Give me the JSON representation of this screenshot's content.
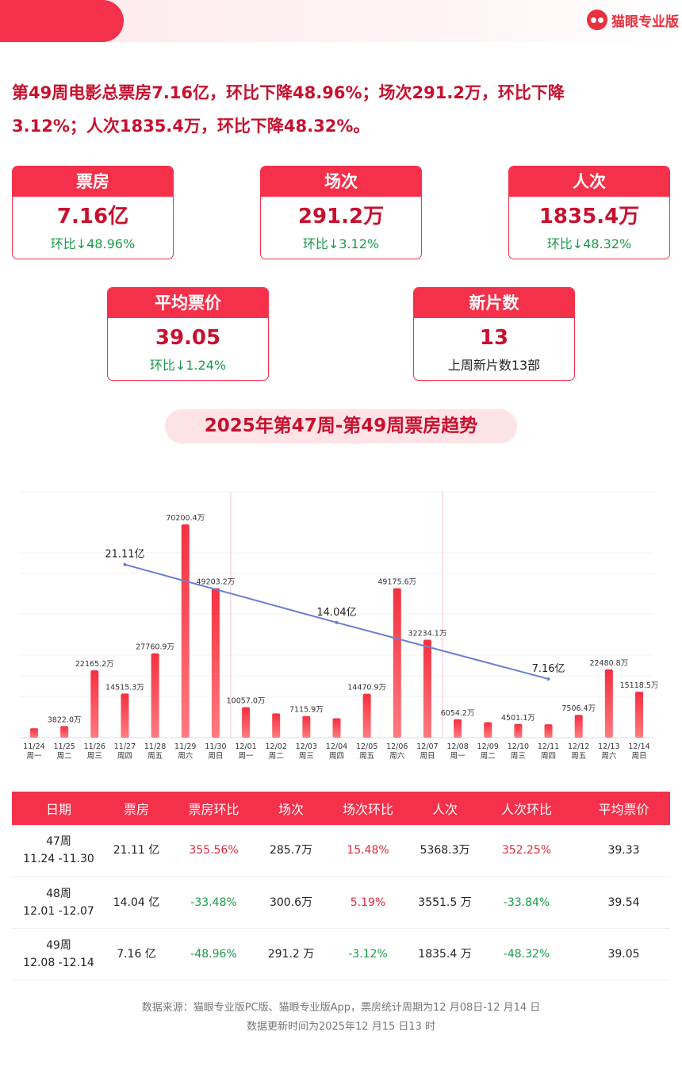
{
  "brand": {
    "name": "猫眼专业版",
    "logo_icon": "cat-icon",
    "accent": "#f5304a"
  },
  "headline": "第49周电影总票房7.16亿，环比下降48.96%；场次291.2万，环比下降3.12%；人次1835.4万，环比下降48.32%。",
  "cards": [
    {
      "title": "票房",
      "value": "7.16亿",
      "sub": "环比↓48.96%"
    },
    {
      "title": "场次",
      "value": "291.2万",
      "sub": "环比↓3.12%"
    },
    {
      "title": "人次",
      "value": "1835.4万",
      "sub": "环比↓48.32%"
    },
    {
      "title": "平均票价",
      "value": "39.05",
      "sub": "环比↓1.24%"
    },
    {
      "title": "新片数",
      "value": "13",
      "sub": "上周新片数13部"
    }
  ],
  "chart_title": "2025年第47周-第49周票房趋势",
  "chart_data": {
    "type": "bar",
    "categories": [
      "11/24",
      "11/25",
      "11/26",
      "11/27",
      "11/28",
      "11/29",
      "11/30",
      "12/01",
      "12/02",
      "12/03",
      "12/04",
      "12/05",
      "12/06",
      "12/07",
      "12/08",
      "12/09",
      "12/10",
      "12/11",
      "12/12",
      "12/13",
      "12/14"
    ],
    "weekdays": [
      "周一",
      "周二",
      "周三",
      "周四",
      "周五",
      "周六",
      "周日",
      "周一",
      "周二",
      "周三",
      "周四",
      "周五",
      "周六",
      "周日",
      "周一",
      "周二",
      "周三",
      "周四",
      "周五",
      "周六",
      "周日"
    ],
    "values": [
      3100,
      3822.0,
      22165.2,
      14515.3,
      27760.9,
      70200.4,
      49203.2,
      10057.0,
      8000,
      7115.9,
      6400,
      14470.9,
      49175.6,
      32234.1,
      6054.2,
      5100,
      4501.1,
      4400,
      7506.4,
      22480.8,
      15118.5
    ],
    "labels": [
      null,
      "3822.0万",
      "22165.2万",
      "14515.3万",
      "27760.9万",
      "70200.4万",
      "49203.2万",
      "10057.0万",
      null,
      "7115.9万",
      null,
      "14470.9万",
      "49175.6万",
      "32234.1万",
      "6054.2万",
      null,
      "4501.1万",
      null,
      "7506.4万",
      "22480.8万",
      "15118.5万"
    ],
    "unit": "万",
    "ylim": [
      0,
      72000
    ],
    "bar_color": "#f5304a",
    "trend": {
      "type": "line",
      "color": "#6a7fd0",
      "x": [
        "11/27",
        "12/04",
        "12/11"
      ],
      "values": [
        21.11,
        14.04,
        7.16
      ],
      "labels": [
        "21.11亿",
        "14.04亿",
        "7.16亿"
      ],
      "ylim": [
        0,
        26.4
      ]
    },
    "week_dividers": [
      "11/30",
      "12/07"
    ],
    "grid": true
  },
  "table": {
    "headers": [
      "日期",
      "票房",
      "票房环比",
      "场次",
      "场次环比",
      "人次",
      "人次环比",
      "平均票价"
    ],
    "rows": [
      {
        "week": "47周",
        "range": "11.24 -11.30",
        "box": "21.11 亿",
        "box_chg": "355.56%",
        "shows": "285.7万",
        "shows_chg": "15.48%",
        "adm": "5368.3万",
        "adm_chg": "352.25%",
        "price": "39.33",
        "box_up": true,
        "shows_up": true,
        "adm_up": true
      },
      {
        "week": "48周",
        "range": "12.01 -12.07",
        "box": "14.04 亿",
        "box_chg": "-33.48%",
        "shows": "300.6万",
        "shows_chg": "5.19%",
        "adm": "3551.5 万",
        "adm_chg": "-33.84%",
        "price": "39.54",
        "box_up": false,
        "shows_up": true,
        "adm_up": false
      },
      {
        "week": "49周",
        "range": "12.08 -12.14",
        "box": "7.16 亿",
        "box_chg": "-48.96%",
        "shows": "291.2 万",
        "shows_chg": "-3.12%",
        "adm": "1835.4 万",
        "adm_chg": "-48.32%",
        "price": "39.05",
        "box_up": false,
        "shows_up": false,
        "adm_up": false
      }
    ]
  },
  "footer": {
    "line1": "数据来源：猫眼专业版PC版、猫眼专业版App，票房统计周期为12 月08日-12 月14 日",
    "line2": "数据更新时间为2025年12 月15 日13 时"
  }
}
